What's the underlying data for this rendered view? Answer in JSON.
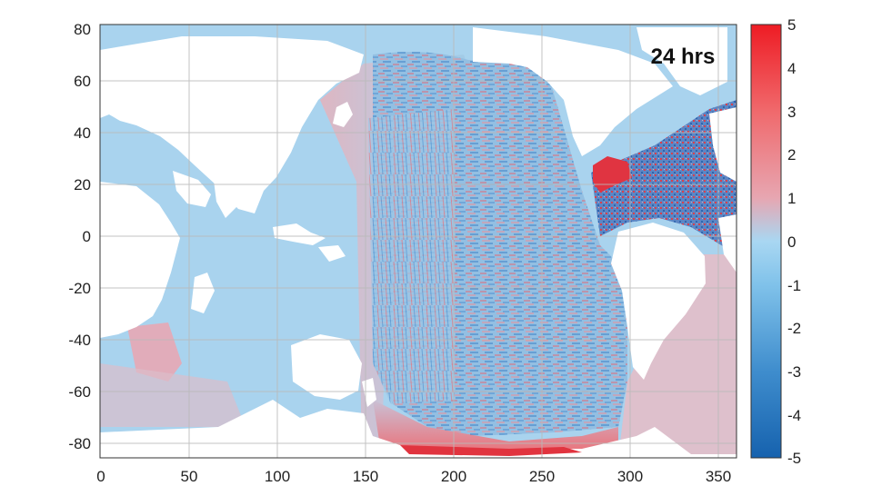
{
  "annotation": "24 hrs",
  "x_ticks": [
    "0",
    "50",
    "100",
    "150",
    "200",
    "250",
    "300",
    "350"
  ],
  "y_ticks": [
    "80",
    "60",
    "40",
    "20",
    "0",
    "-20",
    "-40",
    "-60",
    "-80"
  ],
  "colorbar_ticks": [
    "5",
    "4",
    "3",
    "2",
    "1",
    "0",
    "-1",
    "-2",
    "-3",
    "-4",
    "-5"
  ],
  "colors": {
    "ocean_base": "#a9d3ee",
    "positive_max": "#e8232b",
    "negative_max": "#1f6fbf",
    "land": "#ffffff",
    "grid": "#b9b9b9"
  }
}
